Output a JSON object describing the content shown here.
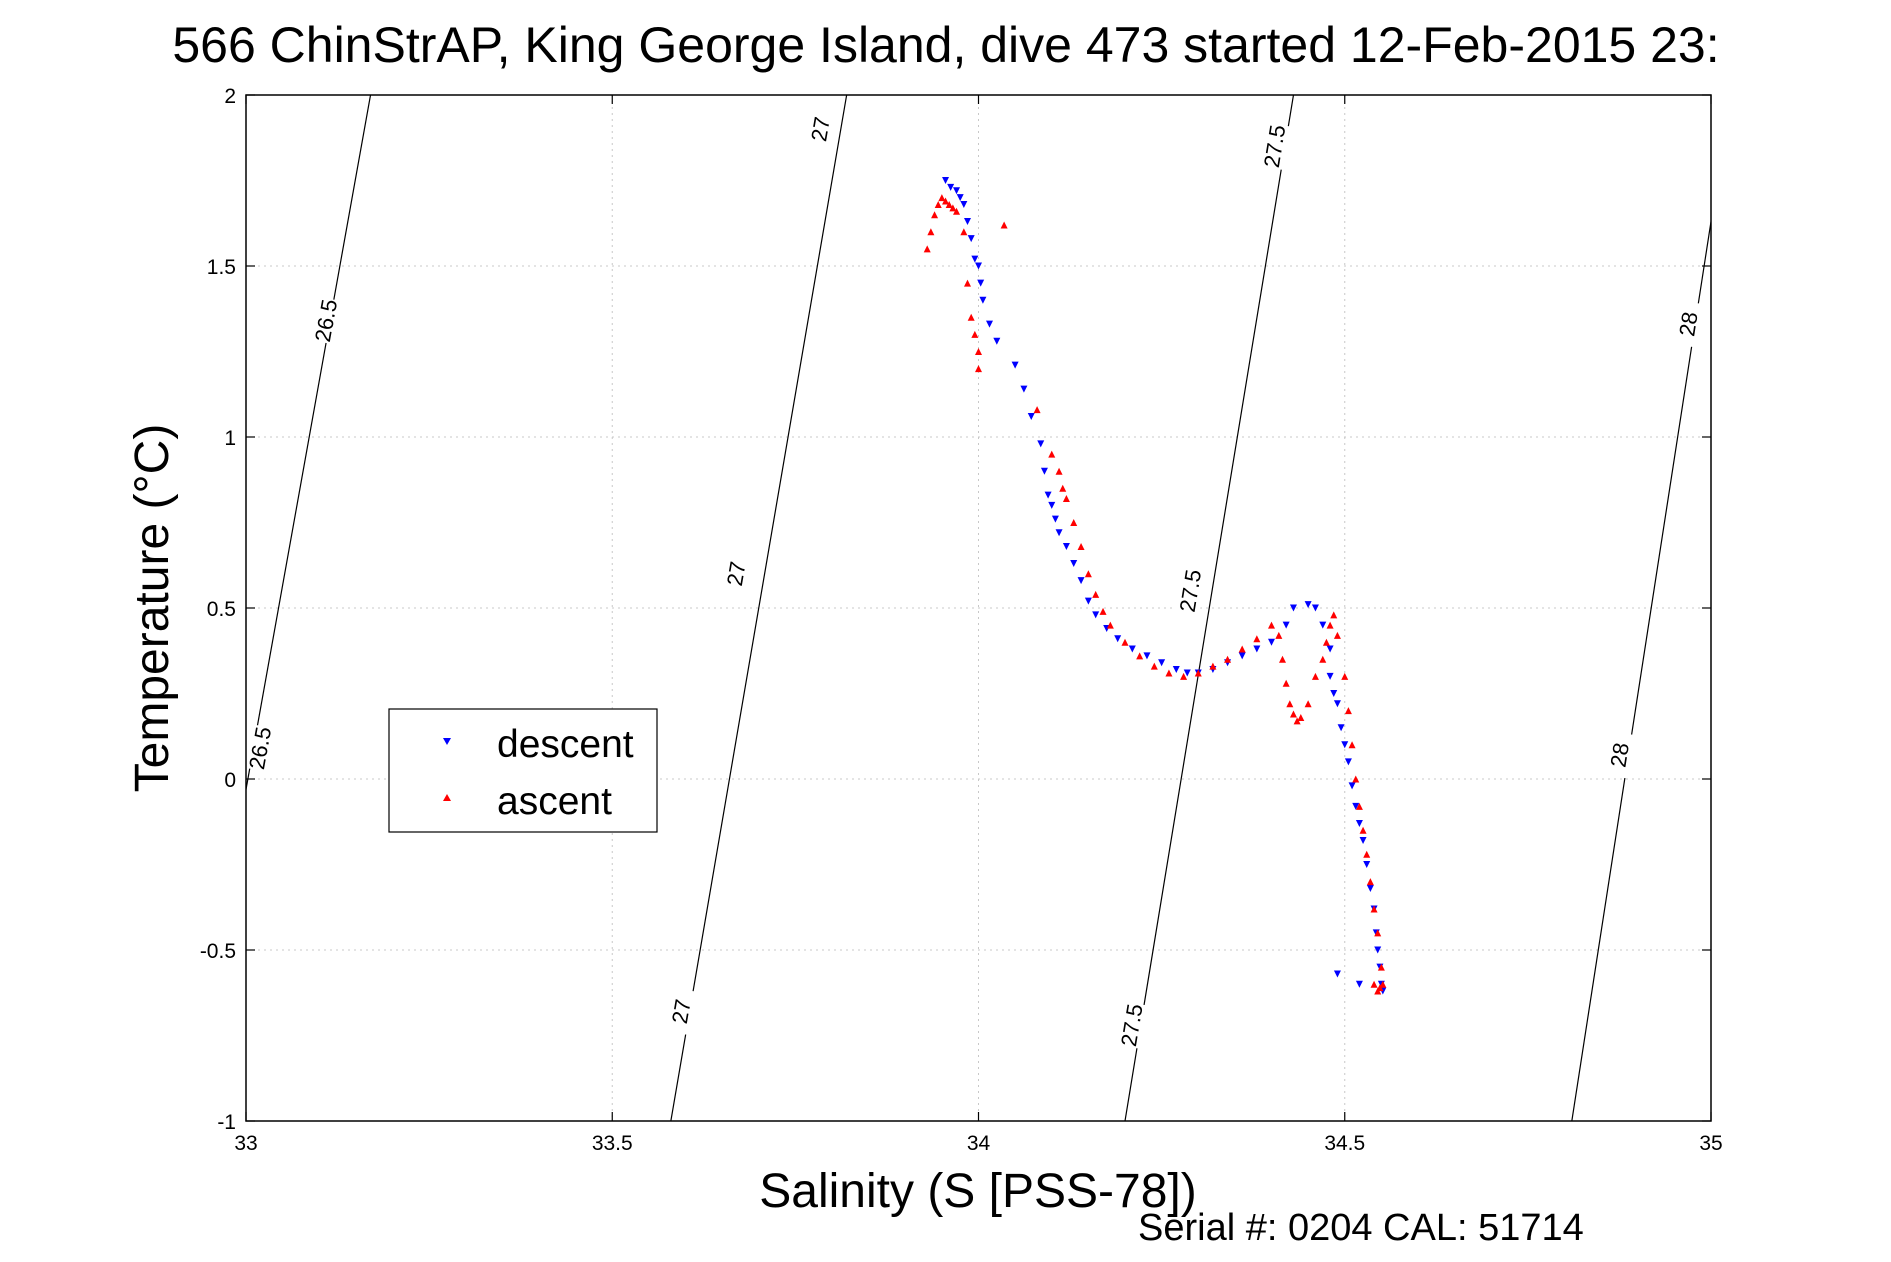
{
  "chart_data": {
    "type": "scatter",
    "title": "566 ChinStrAP, King George Island, dive 473 started 12-Feb-2015 23:",
    "xlabel": "Salinity (S [PSS-78])",
    "ylabel": "Temperature (°C)",
    "footer": "Serial #: 0204  CAL: 51714",
    "xlim": [
      33,
      35
    ],
    "ylim": [
      -1,
      2
    ],
    "xticks": [
      "33",
      "33.5",
      "34",
      "34.5",
      "35"
    ],
    "yticks": [
      "-1",
      "-0.5",
      "0",
      "0.5",
      "1",
      "1.5",
      "2"
    ],
    "grid": true,
    "legend_position": "center-left",
    "contours": [
      {
        "level": "26.5",
        "points": [
          [
            32.99,
            -0.15
          ],
          [
            33.17,
            2.0
          ]
        ],
        "labels": [
          [
            33.02,
            0.09
          ],
          [
            33.11,
            1.34
          ]
        ]
      },
      {
        "level": "27",
        "points": [
          [
            33.58,
            -1.0
          ],
          [
            33.82,
            2.0
          ]
        ],
        "labels": [
          [
            33.595,
            -0.68
          ],
          [
            33.67,
            0.6
          ],
          [
            33.785,
            1.9
          ]
        ]
      },
      {
        "level": "27.5",
        "points": [
          [
            34.2,
            -1.0
          ],
          [
            34.43,
            2.0
          ]
        ],
        "labels": [
          [
            34.21,
            -0.72
          ],
          [
            34.29,
            0.55
          ],
          [
            34.405,
            1.85
          ]
        ]
      },
      {
        "level": "28",
        "points": [
          [
            34.81,
            -1.0
          ],
          [
            35.0,
            1.63
          ]
        ],
        "labels": [
          [
            34.876,
            0.07
          ],
          [
            34.97,
            1.33
          ]
        ]
      }
    ],
    "series": [
      {
        "name": "descent",
        "color": "#0000ff",
        "marker": "triangle-down",
        "x": [
          33.955,
          33.962,
          33.97,
          33.975,
          33.98,
          33.985,
          33.99,
          33.995,
          34.0,
          34.003,
          34.006,
          34.015,
          34.025,
          34.05,
          34.062,
          34.072,
          34.085,
          34.09,
          34.095,
          34.1,
          34.105,
          34.11,
          34.12,
          34.13,
          34.14,
          34.15,
          34.16,
          34.175,
          34.19,
          34.21,
          34.23,
          34.25,
          34.27,
          34.285,
          34.3,
          34.32,
          34.34,
          34.36,
          34.38,
          34.4,
          34.42,
          34.43,
          34.45,
          34.46,
          34.47,
          34.48,
          34.48,
          34.485,
          34.49,
          34.495,
          34.5,
          34.505,
          34.51,
          34.515,
          34.52,
          34.525,
          34.53,
          34.535,
          34.54,
          34.543,
          34.545,
          34.548,
          34.55,
          34.552,
          34.49,
          34.52
        ],
        "y": [
          1.75,
          1.73,
          1.72,
          1.7,
          1.68,
          1.63,
          1.58,
          1.52,
          1.5,
          1.45,
          1.4,
          1.33,
          1.28,
          1.21,
          1.14,
          1.06,
          0.98,
          0.9,
          0.83,
          0.8,
          0.76,
          0.72,
          0.68,
          0.63,
          0.58,
          0.52,
          0.48,
          0.44,
          0.41,
          0.38,
          0.36,
          0.34,
          0.32,
          0.31,
          0.31,
          0.32,
          0.34,
          0.36,
          0.38,
          0.4,
          0.45,
          0.5,
          0.51,
          0.5,
          0.45,
          0.38,
          0.3,
          0.25,
          0.22,
          0.15,
          0.1,
          0.05,
          -0.02,
          -0.08,
          -0.13,
          -0.18,
          -0.25,
          -0.32,
          -0.38,
          -0.45,
          -0.5,
          -0.55,
          -0.6,
          -0.62,
          -0.57,
          -0.6
        ]
      },
      {
        "name": "ascent",
        "color": "#ff0000",
        "marker": "triangle-up",
        "x": [
          33.93,
          33.935,
          33.94,
          33.945,
          33.95,
          33.955,
          33.96,
          33.965,
          33.97,
          33.98,
          33.985,
          33.99,
          33.995,
          34.0,
          34.0,
          34.035,
          34.08,
          34.1,
          34.11,
          34.115,
          34.12,
          34.13,
          34.14,
          34.15,
          34.16,
          34.17,
          34.18,
          34.2,
          34.22,
          34.24,
          34.26,
          34.28,
          34.3,
          34.32,
          34.34,
          34.36,
          34.38,
          34.4,
          34.41,
          34.415,
          34.42,
          34.425,
          34.43,
          34.435,
          34.44,
          34.45,
          34.46,
          34.47,
          34.475,
          34.48,
          34.485,
          34.49,
          34.5,
          34.505,
          34.51,
          34.515,
          34.52,
          34.525,
          34.53,
          34.535,
          34.54,
          34.545,
          34.55,
          34.552,
          34.548,
          34.545,
          34.54
        ],
        "y": [
          1.55,
          1.6,
          1.65,
          1.68,
          1.7,
          1.69,
          1.68,
          1.67,
          1.66,
          1.6,
          1.45,
          1.35,
          1.3,
          1.25,
          1.2,
          1.62,
          1.08,
          0.95,
          0.9,
          0.85,
          0.82,
          0.75,
          0.68,
          0.6,
          0.54,
          0.49,
          0.45,
          0.4,
          0.36,
          0.33,
          0.31,
          0.3,
          0.31,
          0.33,
          0.35,
          0.38,
          0.41,
          0.45,
          0.42,
          0.35,
          0.28,
          0.22,
          0.19,
          0.17,
          0.18,
          0.22,
          0.3,
          0.35,
          0.4,
          0.45,
          0.48,
          0.42,
          0.3,
          0.2,
          0.1,
          0.0,
          -0.08,
          -0.15,
          -0.22,
          -0.3,
          -0.38,
          -0.45,
          -0.55,
          -0.6,
          -0.61,
          -0.62,
          -0.6
        ]
      }
    ]
  }
}
